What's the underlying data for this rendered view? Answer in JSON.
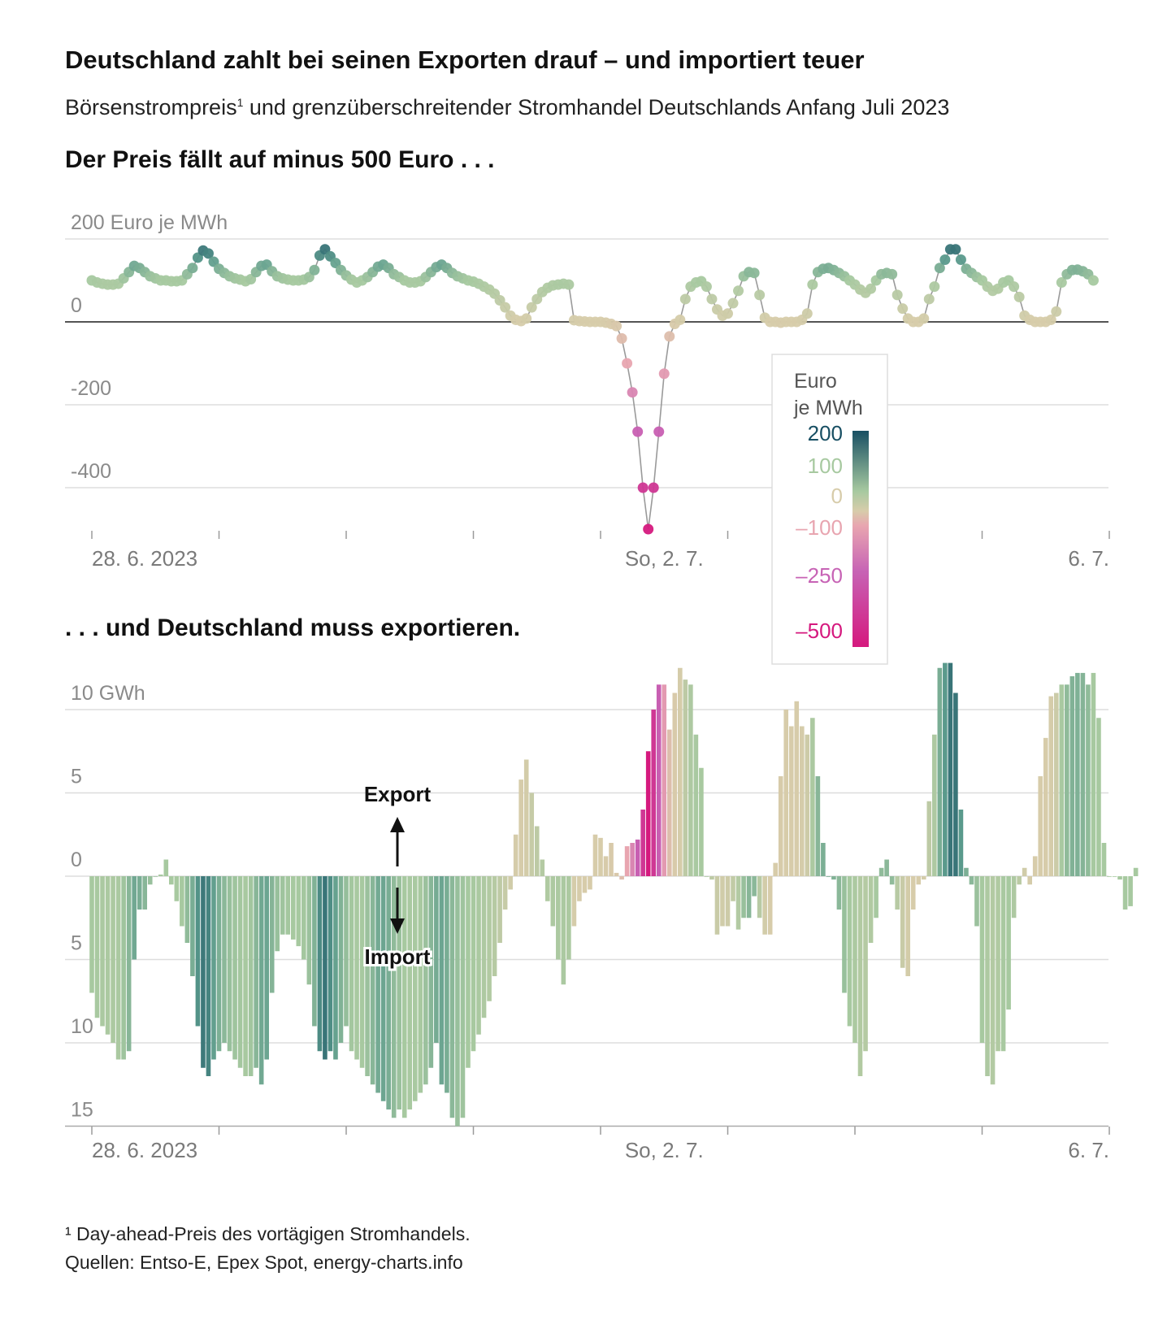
{
  "title": "Deutschland zahlt bei seinen Exporten drauf – und importiert teuer",
  "subtitle": "Börsenstrompreis",
  "subtitle_note": "1",
  "subtitle_rest": " und grenzüberschreitender Stromhandel Deutschlands Anfang Juli 2023",
  "footnote": "¹ Day-ahead-Preis des vortägigen Stromhandels.",
  "source": "Quellen: Entso-E, Epex Spot, energy-charts.info",
  "colors": {
    "scale": [
      "#d5197e",
      "#c763b5",
      "#e8a5b0",
      "#d7ccaa",
      "#a7c9a0",
      "#5a9a8c",
      "#184f63"
    ],
    "grid": "#dddddd",
    "zero_line": "#555555"
  },
  "chart_data": [
    {
      "type": "scatter",
      "title": "Der Preis fällt auf minus 500 Euro . . .",
      "ylabel": "200 Euro je MWh",
      "y_ticks": [
        {
          "value": 200,
          "label": "200 Euro je MWh"
        },
        {
          "value": 0,
          "label": "0"
        },
        {
          "value": -200,
          "label": "-200"
        },
        {
          "value": -400,
          "label": "-400"
        }
      ],
      "ylim": [
        -510,
        200
      ],
      "xlim": [
        0,
        195
      ],
      "x_ticks": [
        0,
        24,
        48,
        72,
        96,
        120,
        144,
        168,
        192
      ],
      "x_labels": [
        {
          "pos": 0,
          "label": "28. 6. 2023",
          "anchor": "start"
        },
        {
          "pos": 108,
          "label": "So, 2. 7.",
          "anchor": "middle"
        },
        {
          "pos": 192,
          "label": "6. 7.",
          "anchor": "end"
        }
      ],
      "unit": "Euro je MWh",
      "legend": {
        "title": [
          "Euro",
          "je MWh"
        ],
        "entries": [
          "200",
          "100",
          "0",
          "–100",
          "–250",
          "–500"
        ]
      },
      "values": [
        100,
        95,
        92,
        90,
        90,
        92,
        105,
        120,
        135,
        130,
        120,
        110,
        105,
        100,
        100,
        98,
        98,
        100,
        115,
        130,
        155,
        172,
        165,
        145,
        128,
        118,
        110,
        105,
        102,
        98,
        103,
        120,
        135,
        138,
        122,
        110,
        105,
        102,
        100,
        100,
        102,
        108,
        125,
        160,
        175,
        158,
        142,
        125,
        112,
        102,
        95,
        100,
        108,
        120,
        133,
        138,
        130,
        115,
        108,
        100,
        95,
        95,
        98,
        108,
        120,
        132,
        138,
        130,
        118,
        110,
        105,
        100,
        97,
        92,
        85,
        78,
        68,
        52,
        35,
        15,
        5,
        2,
        8,
        35,
        55,
        72,
        82,
        88,
        90,
        92,
        90,
        4,
        2,
        1,
        0,
        0,
        0,
        -2,
        -5,
        -10,
        -40,
        -100,
        -170,
        -265,
        -400,
        -500,
        -400,
        -265,
        -125,
        -35,
        -5,
        5,
        55,
        85,
        95,
        98,
        85,
        55,
        30,
        15,
        20,
        45,
        75,
        110,
        120,
        118,
        65,
        10,
        0,
        0,
        -2,
        0,
        0,
        0,
        5,
        20,
        90,
        120,
        128,
        130,
        125,
        118,
        110,
        100,
        90,
        78,
        70,
        80,
        100,
        115,
        118,
        115,
        65,
        32,
        8,
        0,
        0,
        8,
        55,
        85,
        130,
        150,
        175,
        175,
        150,
        128,
        118,
        108,
        100,
        85,
        75,
        80,
        95,
        100,
        85,
        60,
        15,
        5,
        0,
        0,
        0,
        5,
        25,
        95,
        115,
        125,
        126,
        122,
        115,
        100
      ]
    },
    {
      "type": "bar",
      "title": ". . . und Deutschland muss exportieren.",
      "ylabel": "10 GWh",
      "y_ticks": [
        {
          "value": 10,
          "label": "10 GWh"
        },
        {
          "value": 5,
          "label": "5"
        },
        {
          "value": 0,
          "label": "0"
        },
        {
          "value": -5,
          "label": "5"
        },
        {
          "value": -10,
          "label": "10"
        },
        {
          "value": -15,
          "label": "15"
        }
      ],
      "ylim": [
        -15,
        12.5
      ],
      "unit": "GWh",
      "annotations": {
        "up": "Export",
        "down": "Import"
      },
      "x_labels": [
        {
          "pos": 0,
          "label": "28. 6. 2023",
          "anchor": "start"
        },
        {
          "pos": 108,
          "label": "So, 2. 7.",
          "anchor": "middle"
        },
        {
          "pos": 192,
          "label": "6. 7.",
          "anchor": "end"
        }
      ],
      "values": [
        -7,
        -8.5,
        -9,
        -9.5,
        -10,
        -11,
        -11,
        -10.5,
        -5,
        -2,
        -2,
        -0.5,
        0,
        0.1,
        1,
        -0.5,
        -1.5,
        -3,
        -4,
        -6,
        -9,
        -11.5,
        -12,
        -11,
        -10.5,
        -10,
        -10.5,
        -11,
        -11.5,
        -12,
        -12,
        -11.5,
        -12.5,
        -11,
        -7,
        -4.5,
        -3.5,
        -3.5,
        -3.8,
        -4.2,
        -5,
        -6.5,
        -9,
        -10.5,
        -11,
        -10.5,
        -11,
        -10,
        -9,
        -10.5,
        -11,
        -11.5,
        -12,
        -12.5,
        -13,
        -13.5,
        -14,
        -14.5,
        -14,
        -14.5,
        -14,
        -13.5,
        -13,
        -12.5,
        -11.5,
        -10,
        -12.5,
        -13,
        -14.5,
        -15,
        -14.5,
        -11.5,
        -10.5,
        -9.5,
        -8.5,
        -7.5,
        -6,
        -4,
        -2,
        -0.8,
        2.5,
        5.8,
        7,
        5,
        3,
        1,
        -1.5,
        -3,
        -5,
        -6.5,
        -5,
        -3,
        -1.5,
        -1,
        -0.8,
        2.5,
        2.3,
        1.2,
        2,
        0.2,
        -0.2,
        1.8,
        2,
        2.2,
        4,
        7.5,
        10,
        11.5,
        11.5,
        8.8,
        11,
        12.5,
        11.8,
        11.5,
        8.5,
        6.5,
        0,
        -0.2,
        -3.5,
        -3,
        -3,
        -1.5,
        -3.2,
        -2.5,
        -2.5,
        -1.2,
        -2.5,
        -3.5,
        -3.5,
        0.8,
        6,
        10,
        9,
        10.5,
        9,
        8.5,
        9.5,
        6,
        2,
        0,
        -0.2,
        -2,
        -7,
        -9,
        -10,
        -12,
        -10.5,
        -4,
        -2.5,
        0.5,
        1,
        -0.5,
        -2,
        -5.5,
        -6,
        -2,
        -0.5,
        -0.2,
        4.5,
        8.5,
        12.5,
        12.8,
        12.8,
        11,
        4,
        0.5,
        -0.5,
        -3,
        -10,
        -12,
        -12.5,
        -10.5,
        -10.5,
        -8,
        -2.5,
        -0.5,
        0.5,
        -0.5,
        1.2,
        6,
        8.3,
        10.8,
        11,
        11.5,
        11.5,
        12,
        12.2,
        12.2,
        11.5,
        12.2,
        9.5,
        2,
        0,
        0,
        -0.2,
        -2,
        -1.8,
        0.5
      ]
    }
  ]
}
